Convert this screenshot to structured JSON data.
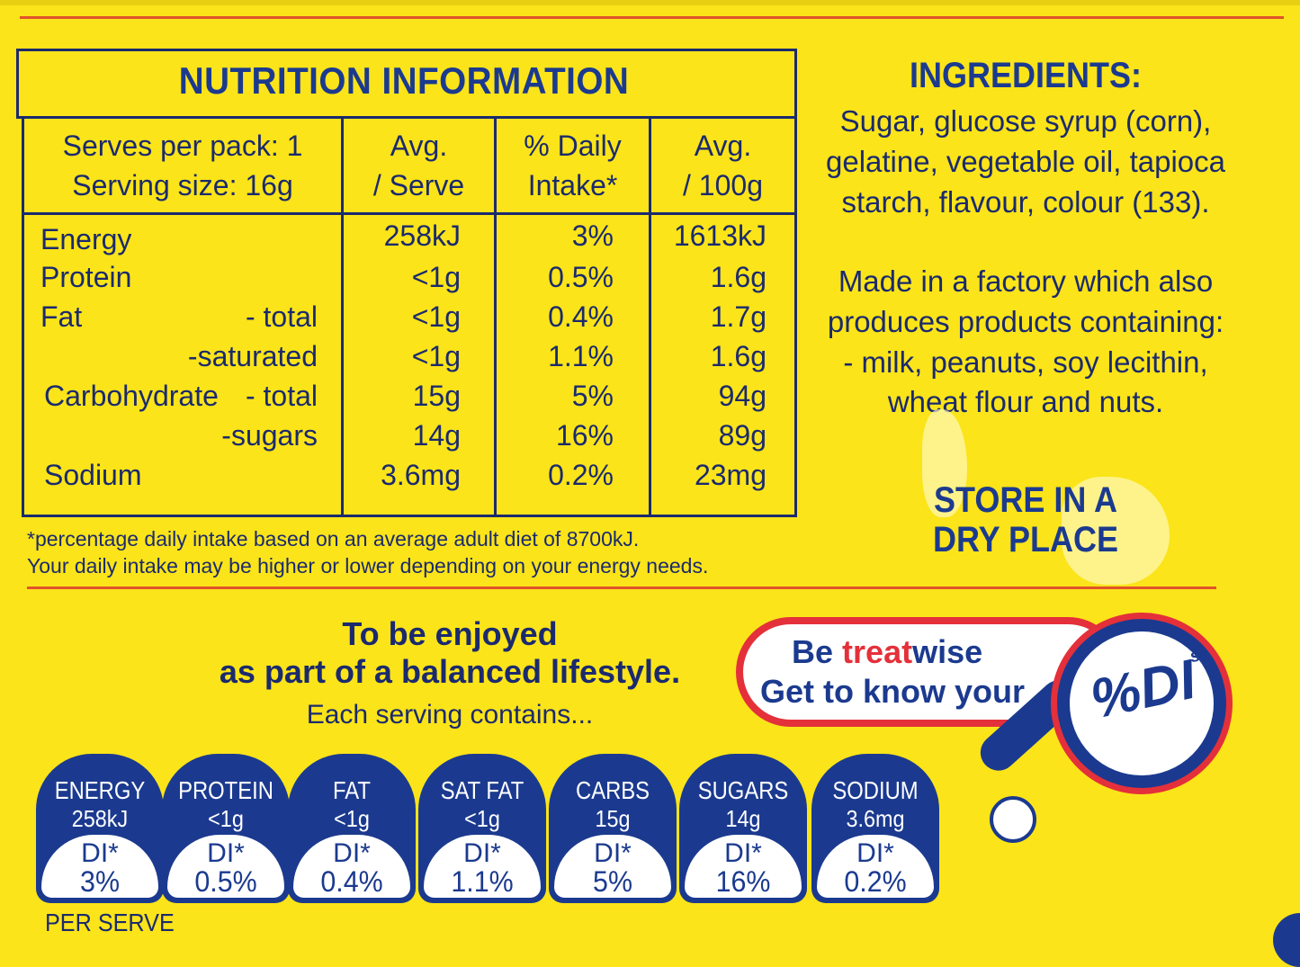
{
  "nutrition": {
    "title": "NUTRITION INFORMATION",
    "header": {
      "serves_per_pack": "Serves per pack: 1",
      "serving_size": "Serving size: 16g",
      "avg_serve_1": "Avg.",
      "avg_serve_2": "/ Serve",
      "daily_1": "% Daily",
      "daily_2": "Intake*",
      "avg100_1": "Avg.",
      "avg100_2": "/ 100g"
    },
    "rows": [
      {
        "label": "Energy",
        "sub": "",
        "serve": "258kJ",
        "di": "3%",
        "per100": "1613kJ"
      },
      {
        "label": "Protein",
        "sub": "",
        "serve": "<1g",
        "di": "0.5%",
        "per100": "1.6g"
      },
      {
        "label": "Fat",
        "sub": "- total",
        "serve": "<1g",
        "di": "0.4%",
        "per100": "1.7g"
      },
      {
        "label": "",
        "sub": "-saturated",
        "serve": "<1g",
        "di": "1.1%",
        "per100": "1.6g"
      },
      {
        "label": "Carbohydrate",
        "sub": "- total",
        "serve": "15g",
        "di": "5%",
        "per100": "94g"
      },
      {
        "label": "",
        "sub": "-sugars",
        "serve": "14g",
        "di": "16%",
        "per100": "89g"
      },
      {
        "label": "Sodium",
        "sub": "",
        "serve": "3.6mg",
        "di": "0.2%",
        "per100": "23mg"
      }
    ],
    "footnote_1": "*percentage daily intake based on an average adult diet of 8700kJ.",
    "footnote_2": "Your daily intake may be higher or lower depending on your energy needs."
  },
  "ingredients": {
    "title": "INGREDIENTS:",
    "lines": [
      "Sugar, glucose syrup (corn),",
      "gelatine, vegetable oil, tapioca",
      "starch, flavour, colour (133)."
    ],
    "allergen_lines": [
      "Made in a factory which also",
      "produces products containing:",
      "- milk, peanuts, soy lecithin,",
      "wheat flour and nuts."
    ],
    "store_1": "STORE IN A",
    "store_2": "DRY PLACE"
  },
  "lifestyle": {
    "line_1": "To be enjoyed",
    "line_2": "as part of a balanced lifestyle.",
    "line_3": "Each serving contains..."
  },
  "treatwise": {
    "be": "Be",
    "treat": "treat",
    "wise": "wise",
    "line_2": "Get to know your",
    "di_mark": "%DI",
    "di_s": "s",
    "colors": {
      "red": "#e4303a",
      "blue": "#1b3a8f"
    }
  },
  "badges": [
    {
      "label": "ENERGY",
      "amount": "258kJ",
      "di": "DI*",
      "pct": "3%"
    },
    {
      "label": "PROTEIN",
      "amount": "<1g",
      "di": "DI*",
      "pct": "0.5%"
    },
    {
      "label": "FAT",
      "amount": "<1g",
      "di": "DI*",
      "pct": "0.4%"
    },
    {
      "label": "SAT FAT",
      "amount": "<1g",
      "di": "DI*",
      "pct": "1.1%"
    },
    {
      "label": "CARBS",
      "amount": "15g",
      "di": "DI*",
      "pct": "5%"
    },
    {
      "label": "SUGARS",
      "amount": "14g",
      "di": "DI*",
      "pct": "16%"
    },
    {
      "label": "SODIUM",
      "amount": "3.6mg",
      "di": "DI*",
      "pct": "0.2%"
    }
  ],
  "per_serve": "PER SERVE",
  "colors": {
    "background": "#fbe419",
    "ink": "#1b2a6e",
    "rule": "#e0542a"
  }
}
